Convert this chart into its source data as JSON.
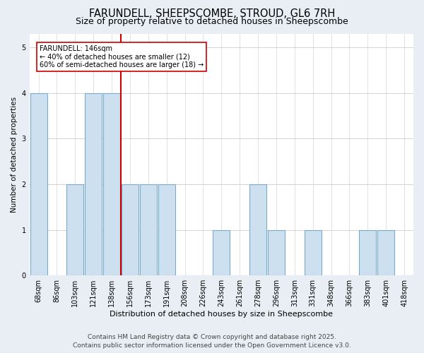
{
  "title": "FARUNDELL, SHEEPSCOMBE, STROUD, GL6 7RH",
  "subtitle": "Size of property relative to detached houses in Sheepscombe",
  "xlabel": "Distribution of detached houses by size in Sheepscombe",
  "ylabel": "Number of detached properties",
  "bar_labels": [
    "68sqm",
    "86sqm",
    "103sqm",
    "121sqm",
    "138sqm",
    "156sqm",
    "173sqm",
    "191sqm",
    "208sqm",
    "226sqm",
    "243sqm",
    "261sqm",
    "278sqm",
    "296sqm",
    "313sqm",
    "331sqm",
    "348sqm",
    "366sqm",
    "383sqm",
    "401sqm",
    "418sqm"
  ],
  "heights": [
    4,
    0,
    2,
    4,
    4,
    2,
    2,
    2,
    0,
    0,
    1,
    0,
    2,
    1,
    0,
    1,
    0,
    0,
    1,
    1,
    0
  ],
  "bar_color": "#cce0f0",
  "bar_edge_color": "#7aabcc",
  "vline_color": "#cc0000",
  "annotation_line1": "FARUNDELL: 146sqm",
  "annotation_line2": "← 40% of detached houses are smaller (12)",
  "annotation_line3": "60% of semi-detached houses are larger (18) →",
  "annotation_box_color": "white",
  "annotation_edge_color": "#cc0000",
  "ylim": [
    0,
    5.3
  ],
  "yticks": [
    0,
    1,
    2,
    3,
    4,
    5
  ],
  "footer1": "Contains HM Land Registry data © Crown copyright and database right 2025.",
  "footer2": "Contains public sector information licensed under the Open Government Licence v3.0.",
  "bg_color": "#e8eef4",
  "plot_bg_color": "#ffffff",
  "grid_color": "#cccccc",
  "title_fontsize": 10.5,
  "subtitle_fontsize": 9,
  "tick_fontsize": 7,
  "ylabel_fontsize": 7.5,
  "xlabel_fontsize": 8,
  "footer_fontsize": 6.5
}
